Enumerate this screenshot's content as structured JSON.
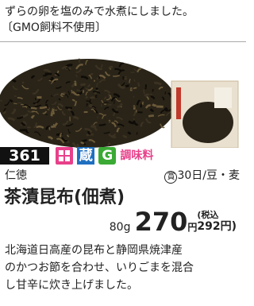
{
  "header": {
    "lines": [
      "ずらの卵を塩のみで水煮にしました。",
      "〔GMO飼料不使用〕"
    ]
  },
  "product": {
    "number": "361",
    "icon_storage": "蔵",
    "icon_g": "G",
    "category": "調味料",
    "maker": "仁徳",
    "shelf_life_mark": "賞",
    "shelf_life": "30日/豆・麦",
    "name": "茶漬昆布(佃煮)",
    "weight": "80g",
    "price": "270",
    "price_unit": "円",
    "tax_label": "(税込",
    "tax_price": "292円)",
    "description": [
      "北海道日高産の昆布と静岡県焼津産",
      "のかつお節を合わせ、いりごまを混合",
      "し甘辛に炊き上げました。"
    ]
  }
}
